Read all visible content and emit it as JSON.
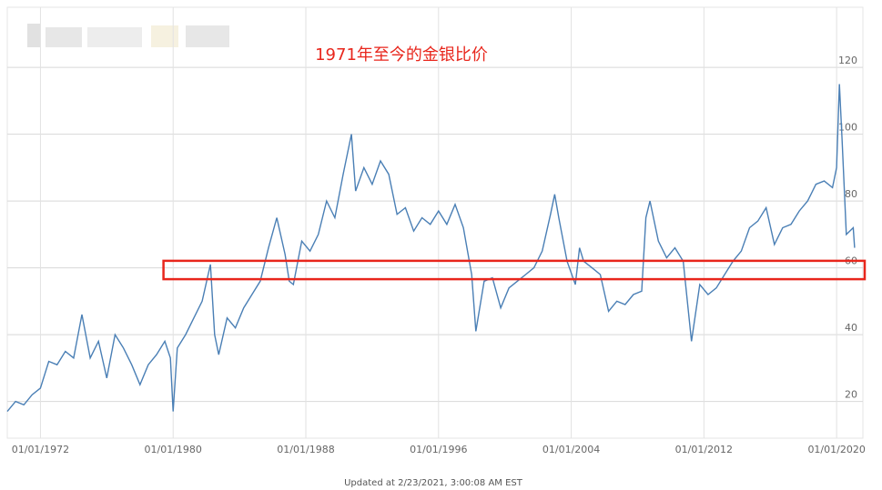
{
  "chart_data": {
    "type": "line",
    "title": "1971年至今的金银比价",
    "footer": "Updated at 2/23/2021, 3:00:08 AM EST",
    "x": [
      "1970-01",
      "1970-07",
      "1971-01",
      "1971-07",
      "1972-01",
      "1972-07",
      "1973-01",
      "1973-07",
      "1974-01",
      "1974-07",
      "1975-01",
      "1975-07",
      "1976-01",
      "1976-07",
      "1977-01",
      "1977-07",
      "1978-01",
      "1978-07",
      "1979-01",
      "1979-07",
      "1979-11",
      "1980-01",
      "1980-04",
      "1980-10",
      "1981-04",
      "1981-10",
      "1982-04",
      "1982-07",
      "1982-10",
      "1983-04",
      "1983-10",
      "1984-04",
      "1984-10",
      "1985-04",
      "1985-10",
      "1986-04",
      "1986-10",
      "1987-01",
      "1987-04",
      "1987-10",
      "1988-04",
      "1988-10",
      "1989-04",
      "1989-10",
      "1990-04",
      "1990-10",
      "1991-01",
      "1991-07",
      "1992-01",
      "1992-07",
      "1993-01",
      "1993-07",
      "1994-01",
      "1994-07",
      "1995-01",
      "1995-07",
      "1996-01",
      "1996-07",
      "1997-01",
      "1997-07",
      "1998-01",
      "1998-04",
      "1998-10",
      "1999-04",
      "1999-10",
      "2000-04",
      "2000-10",
      "2001-04",
      "2001-10",
      "2002-04",
      "2002-10",
      "2003-01",
      "2003-04",
      "2003-10",
      "2004-04",
      "2004-07",
      "2004-10",
      "2005-04",
      "2005-10",
      "2006-04",
      "2006-10",
      "2007-04",
      "2007-10",
      "2008-04",
      "2008-07",
      "2008-10",
      "2009-04",
      "2009-10",
      "2010-04",
      "2010-10",
      "2011-04",
      "2011-10",
      "2012-04",
      "2012-10",
      "2013-04",
      "2013-10",
      "2014-04",
      "2014-10",
      "2015-04",
      "2015-10",
      "2016-04",
      "2016-10",
      "2017-04",
      "2017-10",
      "2018-04",
      "2018-10",
      "2019-04",
      "2019-10",
      "2020-01",
      "2020-03",
      "2020-05",
      "2020-08",
      "2021-01",
      "2021-02"
    ],
    "values": [
      17,
      20,
      19,
      22,
      24,
      32,
      31,
      35,
      33,
      46,
      33,
      38,
      27,
      40,
      36,
      31,
      25,
      31,
      34,
      38,
      33,
      17,
      36,
      40,
      45,
      50,
      61,
      40,
      34,
      45,
      42,
      48,
      52,
      56,
      66,
      75,
      64,
      56,
      55,
      68,
      65,
      70,
      80,
      75,
      88,
      100,
      83,
      90,
      85,
      92,
      88,
      76,
      78,
      71,
      75,
      73,
      77,
      73,
      79,
      72,
      58,
      41,
      56,
      57,
      48,
      54,
      56,
      58,
      60,
      65,
      76,
      82,
      75,
      62,
      55,
      66,
      62,
      60,
      58,
      47,
      50,
      49,
      52,
      53,
      75,
      80,
      68,
      63,
      66,
      62,
      38,
      55,
      52,
      54,
      58,
      62,
      65,
      72,
      74,
      78,
      67,
      72,
      73,
      77,
      80,
      85,
      86,
      84,
      90,
      115,
      98,
      70,
      72,
      66
    ],
    "color": "#4a7fb5",
    "xlim": [
      "1970-01",
      "2021-08"
    ],
    "ylim": [
      9,
      138
    ],
    "yticks": [
      20,
      40,
      60,
      80,
      100,
      120
    ],
    "xticks": [
      {
        "value": "1972-01",
        "label": "01/01/1972"
      },
      {
        "value": "1980-01",
        "label": "01/01/1980"
      },
      {
        "value": "1988-01",
        "label": "01/01/1988"
      },
      {
        "value": "1996-01",
        "label": "01/01/1996"
      },
      {
        "value": "2004-01",
        "label": "01/01/2004"
      },
      {
        "value": "2012-01",
        "label": "01/01/2012"
      },
      {
        "value": "2020-01",
        "label": "01/01/2020"
      }
    ],
    "grid": true,
    "highlight": {
      "x0": "1979-06",
      "ylim": [
        56.6,
        62.1
      ],
      "color": "#e8261c"
    }
  }
}
